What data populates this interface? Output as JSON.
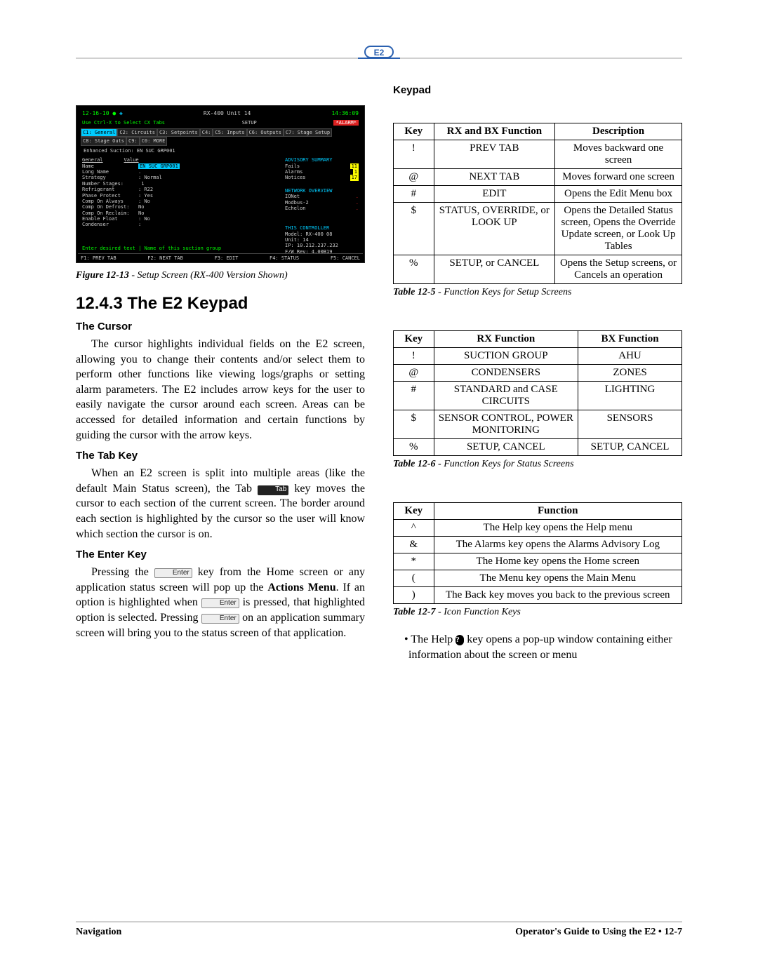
{
  "logo_text": "E2",
  "screenshot": {
    "date": "12-16-10",
    "title": "RX-400 Unit 14",
    "subtitle": "SETUP",
    "time": "14:36:09",
    "alarm_tag": "*ALARM*",
    "hint": "Use Ctrl-X to Select CX Tabs",
    "tabs": [
      "C1: General",
      "C2: Circuits",
      "C3: Setpoints",
      "C4:",
      "C5: Inputs",
      "C6: Outputs",
      "C7: Stage Setup",
      "C8: Stage Outs",
      "C9:",
      "C0: MORE"
    ],
    "enhanced_line": "Enhanced Suction: EN SUC GRP001",
    "general_hdr": "General",
    "value_hdr": "Value",
    "fields": [
      [
        "Name",
        "EN SUC GRP001",
        true
      ],
      [
        "Long Name",
        "."
      ],
      [
        "Strategy",
        ": Normal"
      ],
      [
        "Number  Stages:",
        "  1"
      ],
      [
        "Refrigerant",
        ": R22"
      ],
      [
        "Phase Protect",
        ": Yes"
      ],
      [
        "Comp On Always",
        ": No"
      ],
      [
        "Comp On Defrost:",
        "No"
      ],
      [
        "Comp On Reclaim:",
        "No"
      ],
      [
        "Enable Float",
        ": No"
      ],
      [
        "Condenser",
        ":"
      ]
    ],
    "advisory_title": "ADVISORY SUMMARY",
    "advisory": [
      [
        "Fails",
        "11"
      ],
      [
        "Alarms",
        "1"
      ],
      [
        "Notices",
        "17"
      ]
    ],
    "network_title": "NETWORK OVERVIEW",
    "network": [
      [
        "IONet",
        "."
      ],
      [
        "Modbus-2",
        "."
      ],
      [
        "Echelon",
        "."
      ]
    ],
    "controller_title": "THIS CONTROLLER",
    "controller": [
      "Model: RX-400  08",
      "Unit: 14",
      "IP: 10.212.237.232",
      "F/W Rev: 4.00B19"
    ],
    "prompt": "Enter desired text   | Name of this suction group",
    "fkeys": [
      "F1: PREV TAB",
      "F2: NEXT TAB",
      "F3: EDIT",
      "F4: STATUS",
      "F5: CANCEL"
    ]
  },
  "figure": {
    "label": "Figure 12-13",
    "text": " -  Setup Screen (RX-400 Version Shown)"
  },
  "section_title": "12.4.3   The E2 Keypad",
  "cursor": {
    "head": "The Cursor",
    "body": "The cursor highlights individual fields on the E2 screen, allowing you to change their contents and/or select them to perform other functions like viewing logs/graphs or setting alarm parameters. The E2 includes arrow keys for the user to easily navigate the cursor around each screen. Areas can be accessed for detailed information and certain functions by guiding the cursor with the arrow keys."
  },
  "tabkey": {
    "head": "The Tab Key",
    "p1a": "When an E2 screen is split into multiple areas (like the default Main Status screen), the Tab ",
    "icon": "Tab",
    "p1b": " key moves the cursor to each section of the current screen. The border around each section is highlighted by the cursor so the user will know which section the cursor is on."
  },
  "enterkey": {
    "head": "The Enter Key",
    "p1a": "Pressing the ",
    "icon1": "Enter",
    "p1b": " key from the Home screen or any application status screen will pop up the ",
    "bold1": "Actions Menu",
    "p1c": ". If an option is highlighted when ",
    "icon2": "Enter",
    "p1d": " is pressed, that highlighted option is selected. Pressing ",
    "icon3": "Enter",
    "p1e": " on an application summary screen will bring you to the status screen of that application."
  },
  "keypad_head": "Keypad",
  "table5": {
    "headers": [
      "Key",
      "RX and BX Function",
      "Description"
    ],
    "rows": [
      [
        "!",
        "PREV TAB",
        "Moves backward one screen"
      ],
      [
        "@",
        "NEXT TAB",
        "Moves forward one screen"
      ],
      [
        "#",
        "EDIT",
        "Opens the Edit Menu box"
      ],
      [
        "$",
        "STATUS, OVERRIDE, or LOOK UP",
        "Opens the Detailed Status screen, Opens the Override Update screen, or Look Up Tables"
      ],
      [
        "%",
        "SETUP, or CANCEL",
        "Opens the Setup screens, or Cancels an operation"
      ]
    ],
    "label": "Table 12-5",
    "caption": " - Function Keys for Setup Screens"
  },
  "table6": {
    "headers": [
      "Key",
      "RX Function",
      "BX Function"
    ],
    "rows": [
      [
        "!",
        "SUCTION GROUP",
        "AHU"
      ],
      [
        "@",
        "CONDENSERS",
        "ZONES"
      ],
      [
        "#",
        "STANDARD and CASE CIRCUITS",
        "LIGHTING"
      ],
      [
        "$",
        "SENSOR CONTROL, POWER MONITORING",
        "SENSORS"
      ],
      [
        "%",
        "SETUP, CANCEL",
        "SETUP, CANCEL"
      ]
    ],
    "label": "Table 12-6",
    "caption": " - Function Keys for Status Screens"
  },
  "table7": {
    "headers": [
      "Key",
      "Function"
    ],
    "rows": [
      [
        "^",
        "The Help key opens the Help menu"
      ],
      [
        "&",
        "The Alarms key opens the Alarms Advisory Log"
      ],
      [
        "*",
        "The Home key opens the Home screen"
      ],
      [
        "(",
        "The Menu key opens the Main Menu"
      ],
      [
        ")",
        "The Back key moves you back to the previous screen"
      ]
    ],
    "label": "Table 12-7",
    "caption": " - Icon Function Keys"
  },
  "help_bullet": {
    "pre": "The Help ",
    "oval": "?",
    "post": " key opens a pop-up window containing either information about the screen or menu"
  },
  "footer": {
    "left": "Navigation",
    "right_prefix": "Operator's Guide to Using the E2 • ",
    "right_page": "12-7"
  }
}
